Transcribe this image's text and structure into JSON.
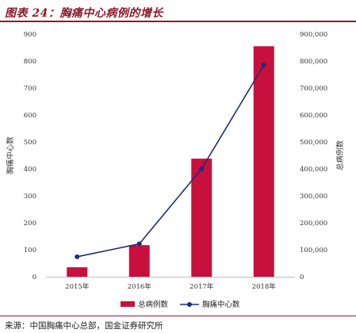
{
  "figure": {
    "title": "图表 24：胸痛中心病例的增长",
    "source": "来源：中国胸痛中心总部，国金证券研究所"
  },
  "colors": {
    "accent": "#8b1c2c",
    "bar": "#c8103e",
    "line": "#1f2d7a"
  },
  "chart_data": {
    "type": "bar",
    "categories": [
      "2015年",
      "2016年",
      "2017年",
      "2018年"
    ],
    "series": [
      {
        "name": "总病例数",
        "type": "bar",
        "axis": "right",
        "values": [
          35000,
          117000,
          438000,
          855000
        ]
      },
      {
        "name": "胸痛中心数",
        "type": "line",
        "axis": "left",
        "values": [
          74,
          122,
          400,
          785
        ]
      }
    ],
    "left_axis": {
      "label": "胸痛中心数",
      "range": [
        0,
        900
      ],
      "ticks": [
        "0",
        "100",
        "200",
        "300",
        "400",
        "500",
        "600",
        "700",
        "800",
        "900"
      ]
    },
    "right_axis": {
      "label": "总病例数",
      "range": [
        0,
        900000
      ],
      "ticks": [
        "0",
        "100,000",
        "200,000",
        "300,000",
        "400,000",
        "500,000",
        "600,000",
        "700,000",
        "800,000",
        "900,000"
      ]
    },
    "legend_position": "bottom",
    "grid": false
  }
}
